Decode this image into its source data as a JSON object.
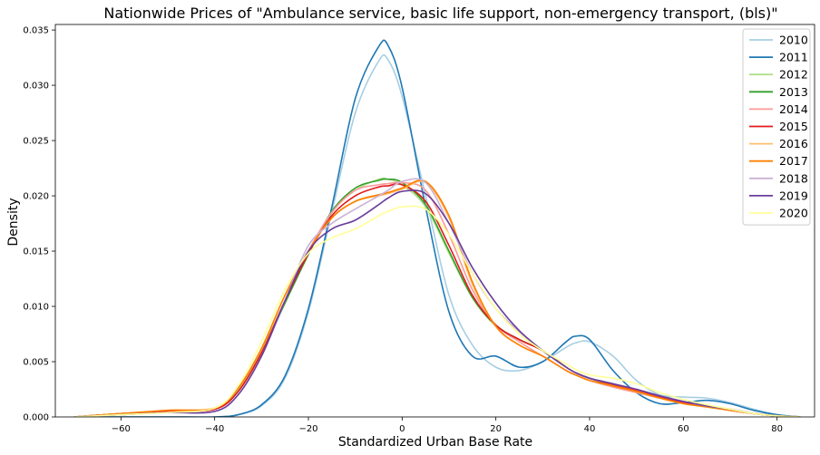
{
  "chart_data": {
    "type": "line",
    "title": "Nationwide Prices of \"Ambulance service, basic life support, non-emergency transport, (bls)\"",
    "xlabel": "Standardized Urban Base Rate",
    "ylabel": "Density",
    "xlim": [
      -74,
      88
    ],
    "ylim": [
      0,
      0.0355
    ],
    "xticks": [
      -60,
      -40,
      -20,
      0,
      20,
      40,
      60,
      80
    ],
    "yticks": [
      0,
      0.005,
      0.01,
      0.015,
      0.02,
      0.025,
      0.03,
      0.035
    ],
    "xtick_labels": [
      "−60",
      "−40",
      "−20",
      "0",
      "20",
      "40",
      "60",
      "80"
    ],
    "ytick_labels": [
      "0.000",
      "0.005",
      "0.010",
      "0.015",
      "0.020",
      "0.025",
      "0.030",
      "0.035"
    ],
    "grid": false,
    "legend": "top-right",
    "x": [
      -70,
      -60,
      -50,
      -40,
      -35,
      -30,
      -25,
      -20,
      -15,
      -10,
      -5,
      -3,
      0,
      5,
      10,
      15,
      20,
      25,
      30,
      35,
      37,
      40,
      45,
      50,
      55,
      60,
      65,
      70,
      75,
      80,
      85
    ],
    "series": [
      {
        "name": "2010",
        "color": "#a6cee3",
        "values": [
          0,
          0,
          0,
          0,
          0.0002,
          0.001,
          0.0035,
          0.0095,
          0.0185,
          0.0275,
          0.0322,
          0.0323,
          0.029,
          0.02,
          0.011,
          0.0065,
          0.0045,
          0.0042,
          0.005,
          0.0063,
          0.0067,
          0.0068,
          0.0055,
          0.0033,
          0.002,
          0.0018,
          0.0017,
          0.0013,
          0.0007,
          0.0002,
          0
        ]
      },
      {
        "name": "2011",
        "color": "#1f78b4",
        "values": [
          0,
          0,
          0,
          0,
          0.0002,
          0.0011,
          0.0037,
          0.0098,
          0.019,
          0.0288,
          0.0335,
          0.0336,
          0.0298,
          0.019,
          0.0095,
          0.0055,
          0.0055,
          0.0045,
          0.005,
          0.0068,
          0.0073,
          0.007,
          0.0042,
          0.0022,
          0.0012,
          0.0013,
          0.0015,
          0.0012,
          0.0006,
          0.0002,
          0
        ]
      },
      {
        "name": "2012",
        "color": "#b2df8a",
        "values": [
          0,
          0.0003,
          0.0005,
          0.0008,
          0.0025,
          0.006,
          0.0105,
          0.0148,
          0.0185,
          0.0205,
          0.0215,
          0.0215,
          0.021,
          0.019,
          0.0148,
          0.0108,
          0.0082,
          0.007,
          0.006,
          0.0045,
          0.004,
          0.0035,
          0.003,
          0.0024,
          0.0018,
          0.0013,
          0.001,
          0.0007,
          0.0003,
          0.0001,
          0
        ]
      },
      {
        "name": "2013",
        "color": "#33a02c",
        "values": [
          0,
          0.0003,
          0.0005,
          0.0007,
          0.0023,
          0.0058,
          0.0103,
          0.0147,
          0.0186,
          0.0207,
          0.0214,
          0.0215,
          0.0212,
          0.0192,
          0.015,
          0.0108,
          0.0083,
          0.007,
          0.006,
          0.0045,
          0.004,
          0.0035,
          0.0029,
          0.0024,
          0.0018,
          0.0013,
          0.001,
          0.0006,
          0.0003,
          0.0001,
          0
        ]
      },
      {
        "name": "2014",
        "color": "#fb9a99",
        "values": [
          0,
          0.0003,
          0.0005,
          0.0007,
          0.0023,
          0.0058,
          0.0105,
          0.015,
          0.0185,
          0.0205,
          0.021,
          0.0211,
          0.0212,
          0.0205,
          0.0165,
          0.0115,
          0.0083,
          0.0068,
          0.0055,
          0.0042,
          0.0038,
          0.0033,
          0.0027,
          0.0022,
          0.0017,
          0.0013,
          0.001,
          0.0006,
          0.0003,
          0.0001,
          0
        ]
      },
      {
        "name": "2015",
        "color": "#e31a1c",
        "values": [
          0,
          0.0003,
          0.0005,
          0.0007,
          0.0023,
          0.0058,
          0.0105,
          0.0148,
          0.0182,
          0.02,
          0.0208,
          0.0209,
          0.021,
          0.0195,
          0.0155,
          0.011,
          0.0083,
          0.007,
          0.006,
          0.0045,
          0.004,
          0.0035,
          0.0029,
          0.0024,
          0.0018,
          0.0013,
          0.001,
          0.0006,
          0.0003,
          0.0001,
          0
        ]
      },
      {
        "name": "2016",
        "color": "#fdbf6f",
        "values": [
          0,
          0.0003,
          0.0006,
          0.0008,
          0.0026,
          0.0062,
          0.011,
          0.015,
          0.018,
          0.0195,
          0.02,
          0.0202,
          0.0206,
          0.0212,
          0.018,
          0.012,
          0.0082,
          0.0065,
          0.0055,
          0.0042,
          0.0038,
          0.0033,
          0.0028,
          0.0023,
          0.0017,
          0.0012,
          0.0009,
          0.0006,
          0.0003,
          0.0001,
          0
        ]
      },
      {
        "name": "2017",
        "color": "#ff7f00",
        "values": [
          0,
          0.0003,
          0.0006,
          0.0008,
          0.0026,
          0.0062,
          0.011,
          0.015,
          0.018,
          0.0195,
          0.0201,
          0.0203,
          0.0207,
          0.0213,
          0.0182,
          0.0122,
          0.0082,
          0.0065,
          0.0055,
          0.0042,
          0.0038,
          0.0033,
          0.0028,
          0.0023,
          0.0017,
          0.0012,
          0.0009,
          0.0006,
          0.0003,
          0.0001,
          0
        ]
      },
      {
        "name": "2018",
        "color": "#cab2d6",
        "values": [
          0,
          0.0002,
          0.0004,
          0.0005,
          0.002,
          0.0055,
          0.0105,
          0.0155,
          0.0175,
          0.0188,
          0.02,
          0.0205,
          0.0213,
          0.0212,
          0.0175,
          0.013,
          0.0098,
          0.0077,
          0.006,
          0.0045,
          0.004,
          0.0035,
          0.003,
          0.0025,
          0.0019,
          0.0014,
          0.001,
          0.0007,
          0.0003,
          0.0001,
          0
        ]
      },
      {
        "name": "2019",
        "color": "#6a3d9a",
        "values": [
          0,
          0.0002,
          0.0004,
          0.0005,
          0.002,
          0.0055,
          0.0105,
          0.015,
          0.017,
          0.0178,
          0.0192,
          0.0198,
          0.0204,
          0.0202,
          0.0175,
          0.0135,
          0.0103,
          0.0078,
          0.006,
          0.0045,
          0.004,
          0.0035,
          0.003,
          0.0025,
          0.0019,
          0.0014,
          0.001,
          0.0007,
          0.0003,
          0.0001,
          0
        ]
      },
      {
        "name": "2020",
        "color": "#ffff99",
        "values": [
          0,
          0.0002,
          0.0004,
          0.0008,
          0.0028,
          0.0068,
          0.0115,
          0.0148,
          0.0162,
          0.017,
          0.0182,
          0.0186,
          0.019,
          0.0188,
          0.0165,
          0.013,
          0.0098,
          0.0075,
          0.006,
          0.0048,
          0.0043,
          0.0038,
          0.0035,
          0.003,
          0.0022,
          0.0016,
          0.0011,
          0.0007,
          0.0003,
          0.0001,
          0
        ]
      }
    ]
  }
}
